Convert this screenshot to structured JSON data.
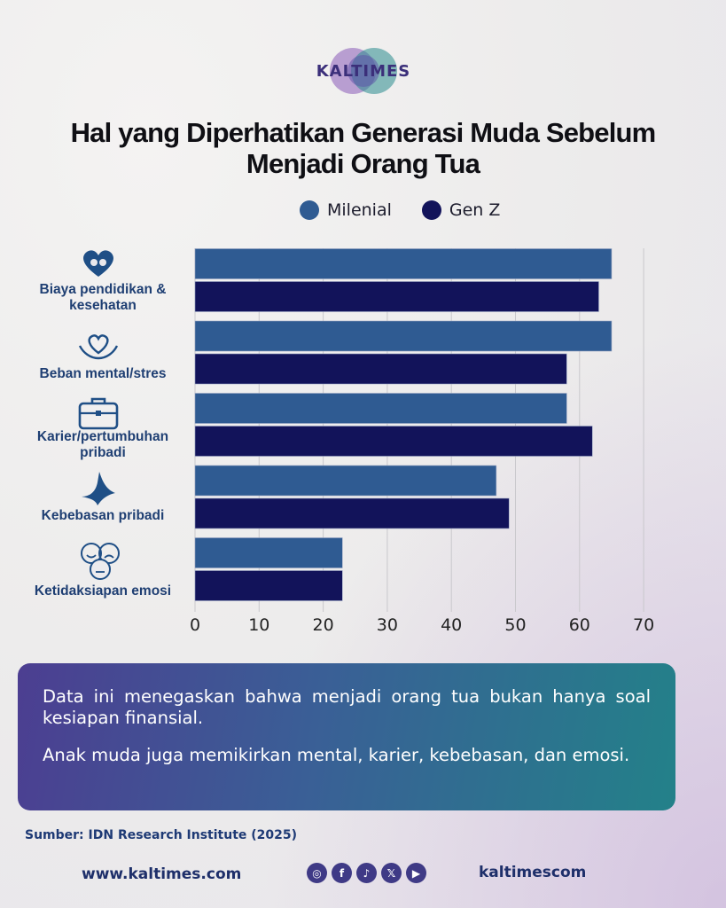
{
  "brand": {
    "logo_text": "KALTIMES"
  },
  "title": "Hal yang Diperhatikan Generasi Muda Sebelum Menjadi Orang Tua",
  "colors": {
    "milenial": "#2f5b92",
    "genz": "#12135a",
    "accent": "#3f3a86"
  },
  "chart_data": {
    "type": "bar",
    "orientation": "horizontal",
    "categories": [
      "Biaya pendidikan & kesehatan",
      "Beban mental/stres",
      "Karier/pertumbuhan pribadi",
      "Kebebasan pribadi",
      "Ketidaksiapan emosi"
    ],
    "category_icons": [
      "heart-hands-icon",
      "hands-heart-icon",
      "briefcase-icon",
      "bird-icon",
      "emotion-faces-icon"
    ],
    "series": [
      {
        "name": "Milenial",
        "values": [
          65,
          65,
          58,
          47,
          23
        ]
      },
      {
        "name": "Gen Z",
        "values": [
          63,
          58,
          62,
          49,
          23
        ]
      }
    ],
    "xlim": [
      0,
      70
    ],
    "xticks": [
      0,
      10,
      20,
      30,
      40,
      50,
      60,
      70
    ],
    "grid": true,
    "legend": "top-center"
  },
  "info": {
    "p1": "Data ini menegaskan bahwa menjadi orang tua bukan hanya soal kesiapan finansial.",
    "p2": "Anak muda juga memikirkan mental, karier, kebebasan, dan emosi."
  },
  "source": "Sumber: IDN Research Institute (2025)",
  "footer": {
    "website": "www.kaltimes.com",
    "handle": "kaltimescom",
    "social_icons": [
      "instagram-icon",
      "facebook-icon",
      "tiktok-icon",
      "x-icon",
      "youtube-icon"
    ]
  }
}
